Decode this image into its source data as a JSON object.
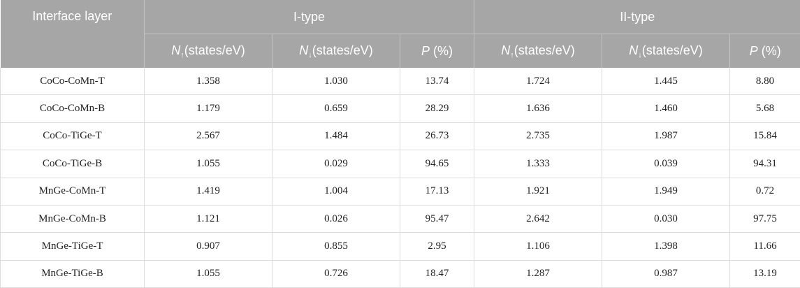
{
  "table": {
    "header": {
      "layer": "Interface layer",
      "group1": "I-type",
      "group2": "II-type",
      "columns": [
        {
          "sym": "N",
          "sub": "↑",
          "unit": "(states/eV)"
        },
        {
          "sym": "N",
          "sub": "↓",
          "unit": "(states/eV)"
        },
        {
          "sym": "P",
          "sub": "",
          "unit": " (%)"
        },
        {
          "sym": "N",
          "sub": "↑",
          "unit": "(states/eV)"
        },
        {
          "sym": "N",
          "sub": "↓",
          "unit": "(states/eV)"
        },
        {
          "sym": "P",
          "sub": "",
          "unit": " (%)"
        }
      ]
    },
    "rows": [
      [
        "CoCo-CoMn-T",
        "1.358",
        "1.030",
        "13.74",
        "1.724",
        "1.445",
        "8.80"
      ],
      [
        "CoCo-CoMn-B",
        "1.179",
        "0.659",
        "28.29",
        "1.636",
        "1.460",
        "5.68"
      ],
      [
        "CoCo-TiGe-T",
        "2.567",
        "1.484",
        "26.73",
        "2.735",
        "1.987",
        "15.84"
      ],
      [
        "CoCo-TiGe-B",
        "1.055",
        "0.029",
        "94.65",
        "1.333",
        "0.039",
        "94.31"
      ],
      [
        "MnGe-CoMn-T",
        "1.419",
        "1.004",
        "17.13",
        "1.921",
        "1.949",
        "0.72"
      ],
      [
        "MnGe-CoMn-B",
        "1.121",
        "0.026",
        "95.47",
        "2.642",
        "0.030",
        "97.75"
      ],
      [
        "MnGe-TiGe-T",
        "0.907",
        "0.855",
        "2.95",
        "1.106",
        "1.398",
        "11.66"
      ],
      [
        "MnGe-TiGe-B",
        "1.055",
        "0.726",
        "18.47",
        "1.287",
        "0.987",
        "13.19"
      ]
    ]
  }
}
